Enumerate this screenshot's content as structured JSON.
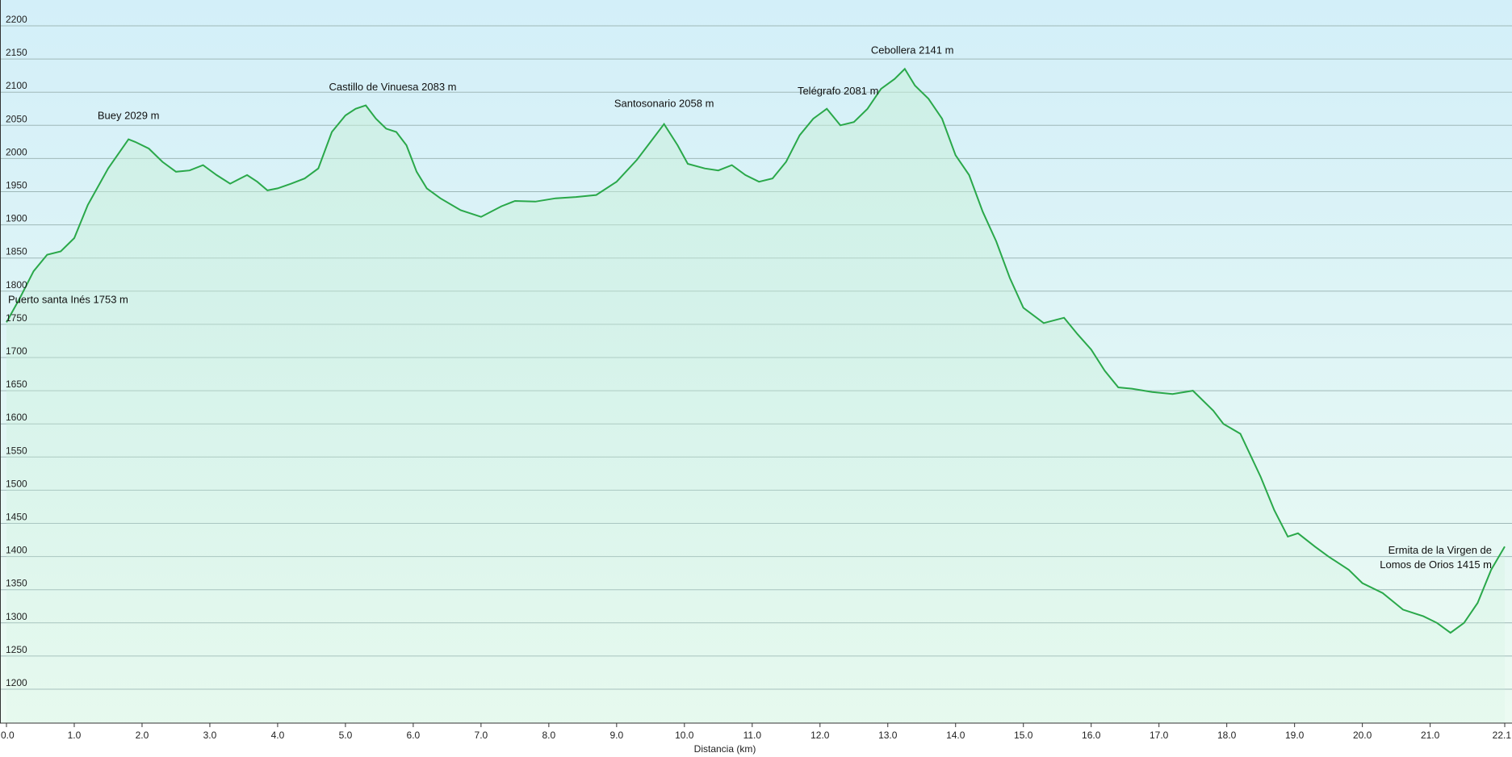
{
  "chart_data": {
    "type": "area",
    "title": "",
    "xlabel": "Distancia  (km)",
    "ylabel": "",
    "xlim": [
      0,
      22.1
    ],
    "ylim": [
      1150,
      2250
    ],
    "grid": true,
    "legend": "none",
    "colors": {
      "line": "#2aa84a",
      "bg_top": "#d3eff9",
      "bg_bottom": "#ecfbf2",
      "fill": "#c8f0d8",
      "grid": "#9fb8b8",
      "axis": "#333333"
    },
    "x_ticks": [
      "0.0",
      "1.0",
      "2.0",
      "3.0",
      "4.0",
      "5.0",
      "6.0",
      "7.0",
      "8.0",
      "9.0",
      "10.0",
      "11.0",
      "12.0",
      "13.0",
      "14.0",
      "15.0",
      "16.0",
      "17.0",
      "18.0",
      "19.0",
      "20.0",
      "21.0",
      "22.1"
    ],
    "y_ticks": [
      "1200",
      "1250",
      "1300",
      "1350",
      "1400",
      "1450",
      "1500",
      "1550",
      "1600",
      "1650",
      "1700",
      "1750",
      "1800",
      "1850",
      "1900",
      "1950",
      "2000",
      "2050",
      "2100",
      "2150",
      "2200"
    ],
    "series": [
      {
        "x": [
          0,
          0.2,
          0.4,
          0.6,
          0.8,
          1.0,
          1.2,
          1.5,
          1.8,
          1.9,
          2.1,
          2.3,
          2.5,
          2.7,
          2.9,
          3.1,
          3.3,
          3.45,
          3.55,
          3.7,
          3.85,
          4.0,
          4.2,
          4.4,
          4.6,
          4.8,
          5.0,
          5.15,
          5.3,
          5.45,
          5.6,
          5.75,
          5.9,
          6.05,
          6.2,
          6.4,
          6.7,
          7.0,
          7.3,
          7.5,
          7.8,
          8.1,
          8.4,
          8.7,
          9.0,
          9.3,
          9.5,
          9.7,
          9.9,
          10.05,
          10.3,
          10.5,
          10.7,
          10.9,
          11.1,
          11.3,
          11.5,
          11.7,
          11.9,
          12.1,
          12.3,
          12.5,
          12.7,
          12.9,
          13.1,
          13.25,
          13.4,
          13.6,
          13.8,
          14.0,
          14.2,
          14.4,
          14.6,
          14.8,
          15.0,
          15.3,
          15.6,
          15.8,
          16.0,
          16.2,
          16.4,
          16.6,
          16.9,
          17.2,
          17.5,
          17.8,
          17.95,
          18.2,
          18.5,
          18.7,
          18.9,
          19.05,
          19.3,
          19.5,
          19.8,
          20.0,
          20.3,
          20.6,
          20.9,
          21.1,
          21.3,
          21.5,
          21.7,
          21.9,
          22.1
        ],
        "y": [
          1753,
          1790,
          1830,
          1855,
          1860,
          1880,
          1930,
          1985,
          2029,
          2025,
          2015,
          1995,
          1980,
          1982,
          1990,
          1975,
          1962,
          1970,
          1975,
          1965,
          1952,
          1955,
          1962,
          1970,
          1985,
          2040,
          2065,
          2075,
          2080,
          2060,
          2045,
          2040,
          2020,
          1980,
          1955,
          1940,
          1922,
          1912,
          1928,
          1936,
          1935,
          1940,
          1942,
          1945,
          1965,
          1998,
          2025,
          2052,
          2020,
          1992,
          1985,
          1982,
          1990,
          1975,
          1965,
          1970,
          1995,
          2035,
          2060,
          2075,
          2050,
          2055,
          2075,
          2105,
          2120,
          2135,
          2110,
          2090,
          2060,
          2005,
          1975,
          1920,
          1875,
          1820,
          1775,
          1752,
          1760,
          1735,
          1712,
          1680,
          1655,
          1653,
          1648,
          1645,
          1650,
          1620,
          1600,
          1585,
          1520,
          1470,
          1430,
          1435,
          1415,
          1400,
          1380,
          1360,
          1345,
          1320,
          1310,
          1300,
          1285,
          1300,
          1330,
          1380,
          1415
        ]
      }
    ],
    "annotations": [
      {
        "text": "Puerto santa Inés 1753 m",
        "x": 0.0,
        "y": 1753
      },
      {
        "text": "Buey 2029 m",
        "x": 1.8,
        "y": 2029
      },
      {
        "text": "Castillo de Vinuesa 2083 m",
        "x": 5.4,
        "y": 2083
      },
      {
        "text": "Santosonario 2058 m",
        "x": 9.7,
        "y": 2058
      },
      {
        "text": "Telégrafo 2081 m",
        "x": 12.1,
        "y": 2081
      },
      {
        "text": "Cebollera 2141 m",
        "x": 13.35,
        "y": 2141
      },
      {
        "text": "Ermita de la Virgen de",
        "x": 22.1,
        "y": 1415
      },
      {
        "text": "Lomos de Orios 1415 m",
        "x": 22.1,
        "y": 1415
      }
    ]
  }
}
